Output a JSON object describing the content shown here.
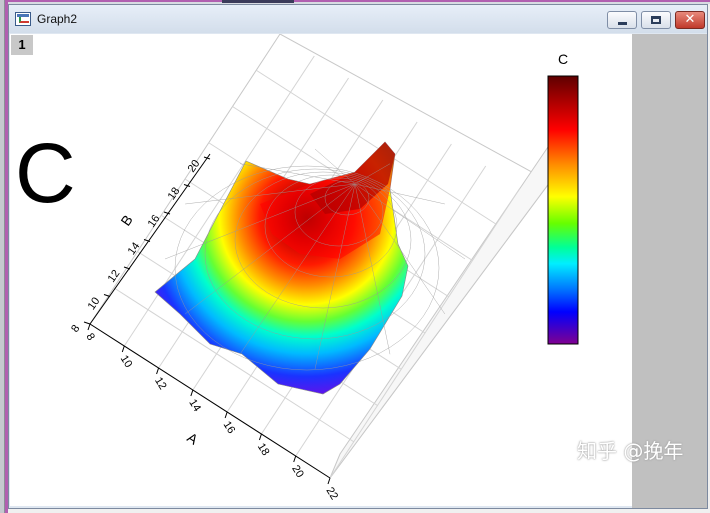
{
  "window": {
    "title": "Graph2"
  },
  "controls": {
    "minimize": "minimize",
    "maximize": "maximize",
    "close": "✕"
  },
  "layer": {
    "number": "1"
  },
  "plot": {
    "big_label": "C"
  },
  "watermark": "知乎 @挽年",
  "colors": {
    "accent_frame": "#b15fb0",
    "canvas": "#ffffff",
    "side_panel": "#c0c0c0"
  },
  "chart_data": {
    "type": "surface",
    "title": "",
    "xlabel": "A",
    "ylabel": "B",
    "zlabel": "",
    "x_ticks": [
      "8",
      "10",
      "12",
      "14",
      "16",
      "18",
      "20",
      "22"
    ],
    "y_ticks": [
      "8",
      "10",
      "12",
      "14",
      "16",
      "18",
      "20"
    ],
    "colorscale_title": "C",
    "colorscale": [
      "#7a0000",
      "#ff0000",
      "#ff8000",
      "#ffff00",
      "#80ff00",
      "#00ff80",
      "#00ffff",
      "#0080ff",
      "#0000ff",
      "#8000ff",
      "#800080"
    ],
    "peak_color": "#7a0000",
    "grid": true
  }
}
